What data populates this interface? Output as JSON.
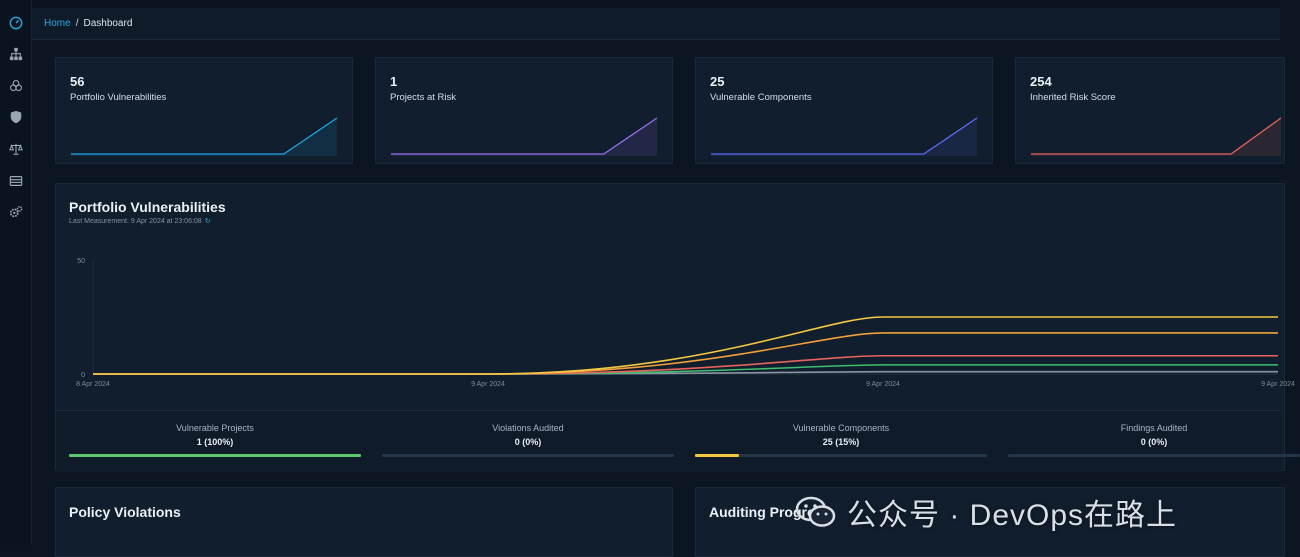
{
  "breadcrumb": {
    "home": "Home",
    "separator": "/",
    "current": "Dashboard"
  },
  "sidebar": {
    "items": [
      {
        "name": "dashboard",
        "icon": "speedometer-icon"
      },
      {
        "name": "projects",
        "icon": "sitemap-icon"
      },
      {
        "name": "components",
        "icon": "cubes-icon"
      },
      {
        "name": "vulnerabilities",
        "icon": "shield-icon"
      },
      {
        "name": "licenses",
        "icon": "balance-scale-icon"
      },
      {
        "name": "tags",
        "icon": "server-icon"
      },
      {
        "name": "administration",
        "icon": "gears-icon"
      }
    ]
  },
  "metrics": [
    {
      "value": "56",
      "label": "Portfolio Vulnerabilities",
      "color": "#1ea4e0",
      "spark": [
        0,
        0,
        0,
        0,
        0,
        1
      ]
    },
    {
      "value": "1",
      "label": "Projects at Risk",
      "color": "#9b6cf0",
      "spark": [
        0,
        0,
        0,
        0,
        0,
        1
      ]
    },
    {
      "value": "25",
      "label": "Vulnerable Components",
      "color": "#5a6cf5",
      "spark": [
        0,
        0,
        0,
        0,
        0,
        1
      ]
    },
    {
      "value": "254",
      "label": "Inherited Risk Score",
      "color": "#e8625e",
      "spark": [
        0,
        0,
        0,
        0,
        0,
        1
      ]
    }
  ],
  "portfolio": {
    "title": "Portfolio Vulnerabilities",
    "subtitle": "Last Measurement: 9 Apr 2024 at 23:06:08",
    "refresh_icon": "refresh-icon"
  },
  "chart_data": {
    "type": "line",
    "title": "Portfolio Vulnerabilities",
    "x": [
      "8 Apr 2024",
      "9 Apr 2024",
      "9 Apr 2024",
      "9 Apr 2024"
    ],
    "ylim": [
      0,
      50
    ],
    "yticks": [
      0,
      50
    ],
    "series": [
      {
        "name": "series-yellow",
        "color": "#f5c842",
        "values": [
          0,
          0,
          25,
          25
        ]
      },
      {
        "name": "series-orange",
        "color": "#f0a03c",
        "values": [
          0,
          0,
          18,
          18
        ]
      },
      {
        "name": "series-pink",
        "color": "#e8625e",
        "values": [
          0,
          0,
          8,
          8
        ]
      },
      {
        "name": "series-green",
        "color": "#3fbf6e",
        "values": [
          0,
          0,
          4,
          4
        ]
      },
      {
        "name": "series-gray",
        "color": "#8a95a3",
        "values": [
          0,
          0,
          1,
          1
        ]
      }
    ]
  },
  "stats": [
    {
      "label": "Vulnerable Projects",
      "value": "1 (100%)",
      "progress": 1.0,
      "color": "#5cc46a"
    },
    {
      "label": "Violations Audited",
      "value": "0 (0%)",
      "progress": 0.0,
      "color": "#5cc46a"
    },
    {
      "label": "Vulnerable Components",
      "value": "25 (15%)",
      "progress": 0.15,
      "color": "#f5c842"
    },
    {
      "label": "Findings Audited",
      "value": "0 (0%)",
      "progress": 0.0,
      "color": "#5cc46a"
    }
  ],
  "panels": {
    "policy": "Policy Violations",
    "auditing": "Auditing Progress"
  },
  "watermark": {
    "text": "公众号 · DevOps在路上"
  }
}
